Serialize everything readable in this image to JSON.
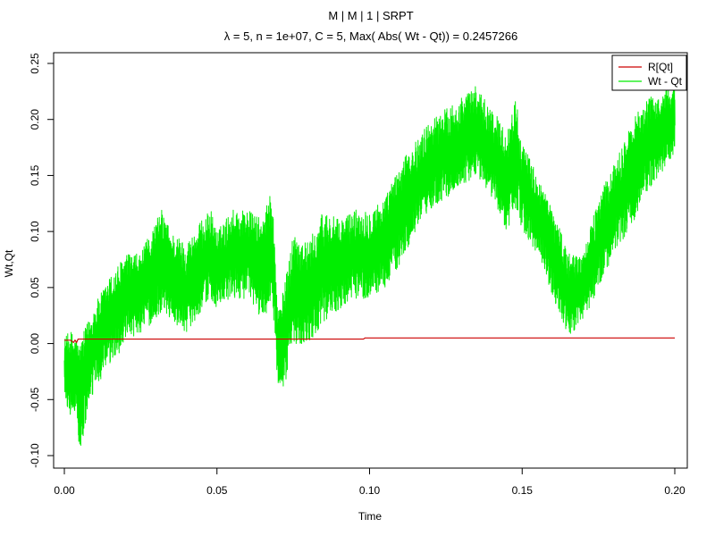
{
  "chart_data": {
    "type": "line",
    "title": "M | M | 1 | SRPT",
    "subtitle": "λ = 5, n = 1e+07, C = 5, Max( Abs( Wt - Qt)) = 0.2457266",
    "xlabel": "Time",
    "ylabel": "Wt,Qt",
    "xlim": [
      0.0,
      0.2
    ],
    "ylim": [
      -0.1,
      0.25
    ],
    "x_ticks": [
      0.0,
      0.05,
      0.1,
      0.15,
      0.2
    ],
    "x_tick_labels": [
      "0.00",
      "0.05",
      "0.10",
      "0.15",
      "0.20"
    ],
    "y_ticks": [
      -0.1,
      -0.05,
      0.0,
      0.05,
      0.1,
      0.15,
      0.2,
      0.25
    ],
    "y_tick_labels": [
      "-0.10",
      "-0.05",
      "0.00",
      "0.05",
      "0.10",
      "0.15",
      "0.20",
      "0.25"
    ],
    "grid": false,
    "legend_position": "top-right",
    "series": [
      {
        "name": "R[Qt]",
        "color": "#cc0000",
        "x": [
          0.0,
          0.002,
          0.003,
          0.0035,
          0.004,
          0.0045,
          0.005,
          0.02,
          0.05,
          0.098,
          0.0985,
          0.15,
          0.2
        ],
        "y": [
          0.003,
          0.003,
          0.001,
          0.003,
          0.001,
          0.004,
          0.004,
          0.004,
          0.004,
          0.004,
          0.005,
          0.005,
          0.005
        ]
      },
      {
        "name": "Wt - Qt",
        "color": "#00ee00",
        "x": [
          0.0,
          0.002,
          0.004,
          0.005,
          0.007,
          0.01,
          0.015,
          0.02,
          0.025,
          0.03,
          0.032,
          0.035,
          0.04,
          0.045,
          0.048,
          0.05,
          0.055,
          0.06,
          0.065,
          0.068,
          0.07,
          0.072,
          0.075,
          0.08,
          0.085,
          0.09,
          0.095,
          0.1,
          0.105,
          0.11,
          0.115,
          0.12,
          0.125,
          0.13,
          0.135,
          0.14,
          0.145,
          0.148,
          0.15,
          0.155,
          0.16,
          0.163,
          0.165,
          0.17,
          0.175,
          0.18,
          0.185,
          0.19,
          0.195,
          0.2
        ],
        "upper": [
          0.005,
          0.012,
          0.005,
          0.0,
          0.015,
          0.035,
          0.06,
          0.08,
          0.08,
          0.11,
          0.12,
          0.1,
          0.09,
          0.11,
          0.12,
          0.1,
          0.12,
          0.12,
          0.11,
          0.14,
          0.03,
          0.05,
          0.1,
          0.09,
          0.12,
          0.11,
          0.12,
          0.12,
          0.13,
          0.16,
          0.18,
          0.2,
          0.21,
          0.22,
          0.23,
          0.21,
          0.19,
          0.22,
          0.18,
          0.15,
          0.12,
          0.1,
          0.08,
          0.08,
          0.13,
          0.16,
          0.19,
          0.22,
          0.22,
          0.24
        ],
        "lower": [
          -0.05,
          -0.065,
          -0.06,
          -0.105,
          -0.07,
          -0.04,
          -0.02,
          0.0,
          0.01,
          0.02,
          0.03,
          0.02,
          0.01,
          0.03,
          0.04,
          0.03,
          0.04,
          0.04,
          0.02,
          0.04,
          -0.045,
          -0.04,
          0.0,
          0.0,
          0.02,
          0.03,
          0.04,
          0.04,
          0.05,
          0.07,
          0.1,
          0.12,
          0.13,
          0.14,
          0.15,
          0.13,
          0.1,
          0.12,
          0.1,
          0.08,
          0.04,
          0.02,
          0.005,
          0.02,
          0.05,
          0.08,
          0.1,
          0.13,
          0.15,
          0.17
        ]
      }
    ]
  }
}
